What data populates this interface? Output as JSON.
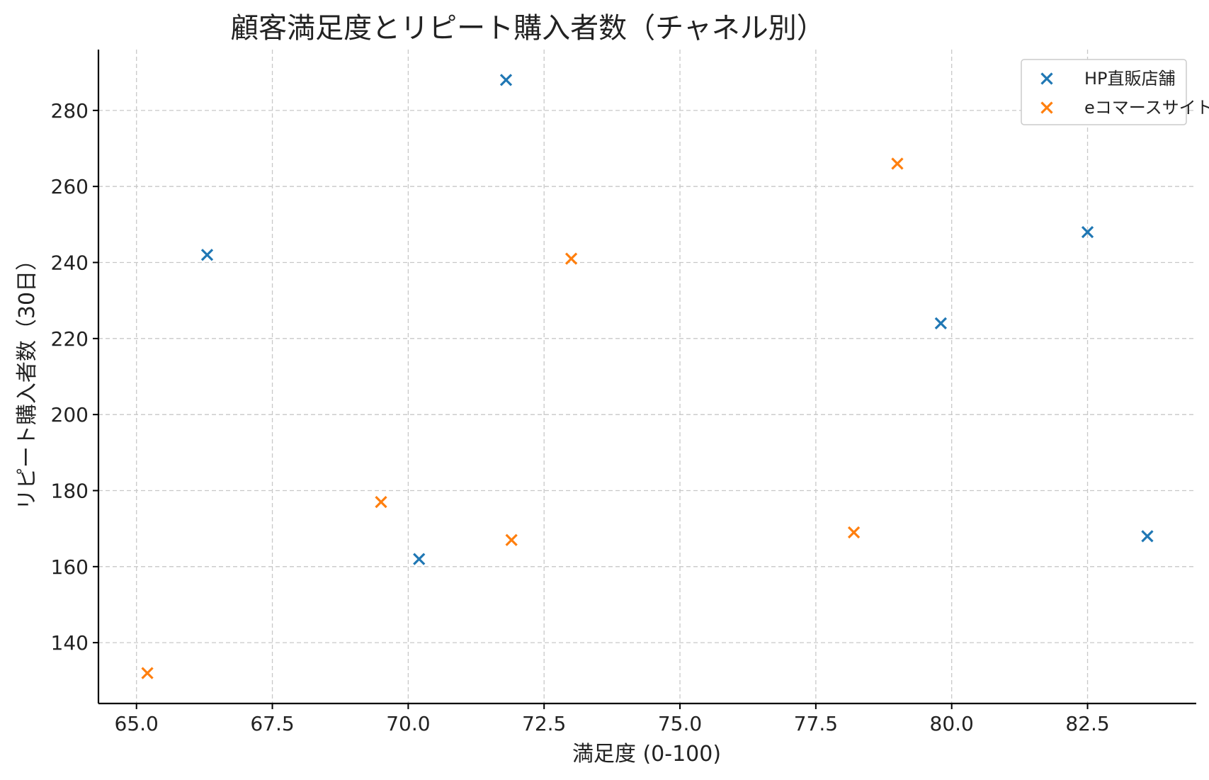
{
  "chart_data": {
    "type": "scatter",
    "title": "顧客満足度とリピート購入者数（チャネル別）",
    "xlabel": "満足度 (0-100)",
    "ylabel": "リピート購入者数（30日）",
    "xlim": [
      64.3,
      84.5
    ],
    "ylim": [
      124,
      296
    ],
    "xticks": [
      65.0,
      67.5,
      70.0,
      72.5,
      75.0,
      77.5,
      80.0,
      82.5
    ],
    "yticks": [
      140,
      160,
      180,
      200,
      220,
      240,
      260,
      280
    ],
    "grid": true,
    "legend_position": "top-right",
    "marker": "x",
    "series": [
      {
        "name": "HP直販店舗",
        "color": "#1f77b4",
        "points": [
          {
            "x": 66.3,
            "y": 242
          },
          {
            "x": 70.2,
            "y": 162
          },
          {
            "x": 71.8,
            "y": 288
          },
          {
            "x": 79.8,
            "y": 224
          },
          {
            "x": 82.5,
            "y": 248
          },
          {
            "x": 83.6,
            "y": 168
          }
        ]
      },
      {
        "name": "eコマースサイト",
        "color": "#ff7f0e",
        "points": [
          {
            "x": 65.2,
            "y": 132
          },
          {
            "x": 69.5,
            "y": 177
          },
          {
            "x": 71.9,
            "y": 167
          },
          {
            "x": 73.0,
            "y": 241
          },
          {
            "x": 78.2,
            "y": 169
          },
          {
            "x": 79.0,
            "y": 266
          }
        ]
      }
    ]
  }
}
